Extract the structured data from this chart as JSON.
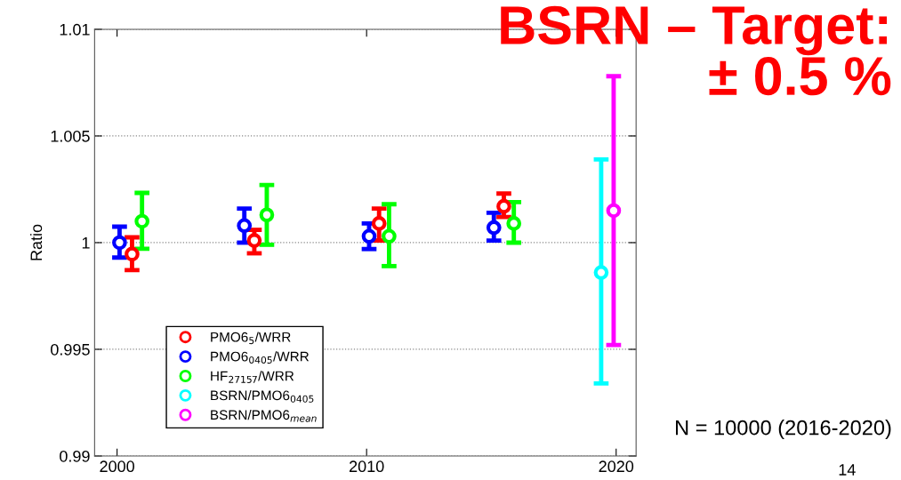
{
  "chart_data": {
    "type": "scatter",
    "title": "BSRN – Target:\n± 0.5 %",
    "ylabel": "Ratio",
    "xlim": [
      1999.1,
      2020.8
    ],
    "xticks": [
      2000,
      2010,
      2020
    ],
    "ylim": [
      0.99,
      1.01
    ],
    "yticks": [
      0.99,
      0.995,
      1,
      1.005,
      1.01
    ],
    "grid": "y",
    "legend": "bottom left",
    "marker": "circle",
    "series": [
      {
        "name": "PMO6$_{5}$/WRR",
        "color": "#ff0000",
        "x": [
          2000.6,
          2005.5,
          2010.5,
          2015.5
        ],
        "values": [
          0.99946,
          1.0001,
          1.0009,
          1.0017
        ],
        "errors": [
          [
            0.99871,
            1.00025
          ],
          [
            0.9995,
            1.0006
          ],
          [
            1.0001,
            1.0016
          ],
          [
            1.0012,
            1.0023
          ]
        ]
      },
      {
        "name": "PMO6$_{0405}$/WRR",
        "color": "#0000ff",
        "x": [
          2000.1,
          2005.1,
          2010.1,
          2015.1
        ],
        "values": [
          1.0,
          1.0008,
          1.0003,
          1.0007
        ],
        "errors": [
          [
            0.9993,
            1.00075
          ],
          [
            1.0,
            1.0016
          ],
          [
            0.9997,
            1.0009
          ],
          [
            1.0001,
            1.0014
          ]
        ]
      },
      {
        "name": "HF$_{27157}$/WRR",
        "color": "#00ff00",
        "x": [
          2001.0,
          2006.0,
          2010.9,
          2015.9
        ],
        "values": [
          1.001,
          1.0013,
          1.0003,
          1.0009
        ],
        "errors": [
          [
            0.99971,
            1.00233
          ],
          [
            0.9999,
            1.0027
          ],
          [
            0.9989,
            1.0018
          ],
          [
            1.0,
            1.0019
          ]
        ]
      },
      {
        "name": "BSRN/PMO6$_{0405}$",
        "color": "#00ffff",
        "x": [
          2019.4
        ],
        "values": [
          0.9986
        ],
        "errors": [
          [
            0.9934,
            1.0039
          ]
        ]
      },
      {
        "name": "BSRN/PMO6$_{mean}$",
        "color": "#ff00ff",
        "x": [
          2019.9
        ],
        "values": [
          1.0015
        ],
        "errors": [
          [
            0.9952,
            1.0078
          ]
        ]
      }
    ],
    "annotations": [
      "N = 10000 (2016-2020)",
      "14"
    ]
  }
}
